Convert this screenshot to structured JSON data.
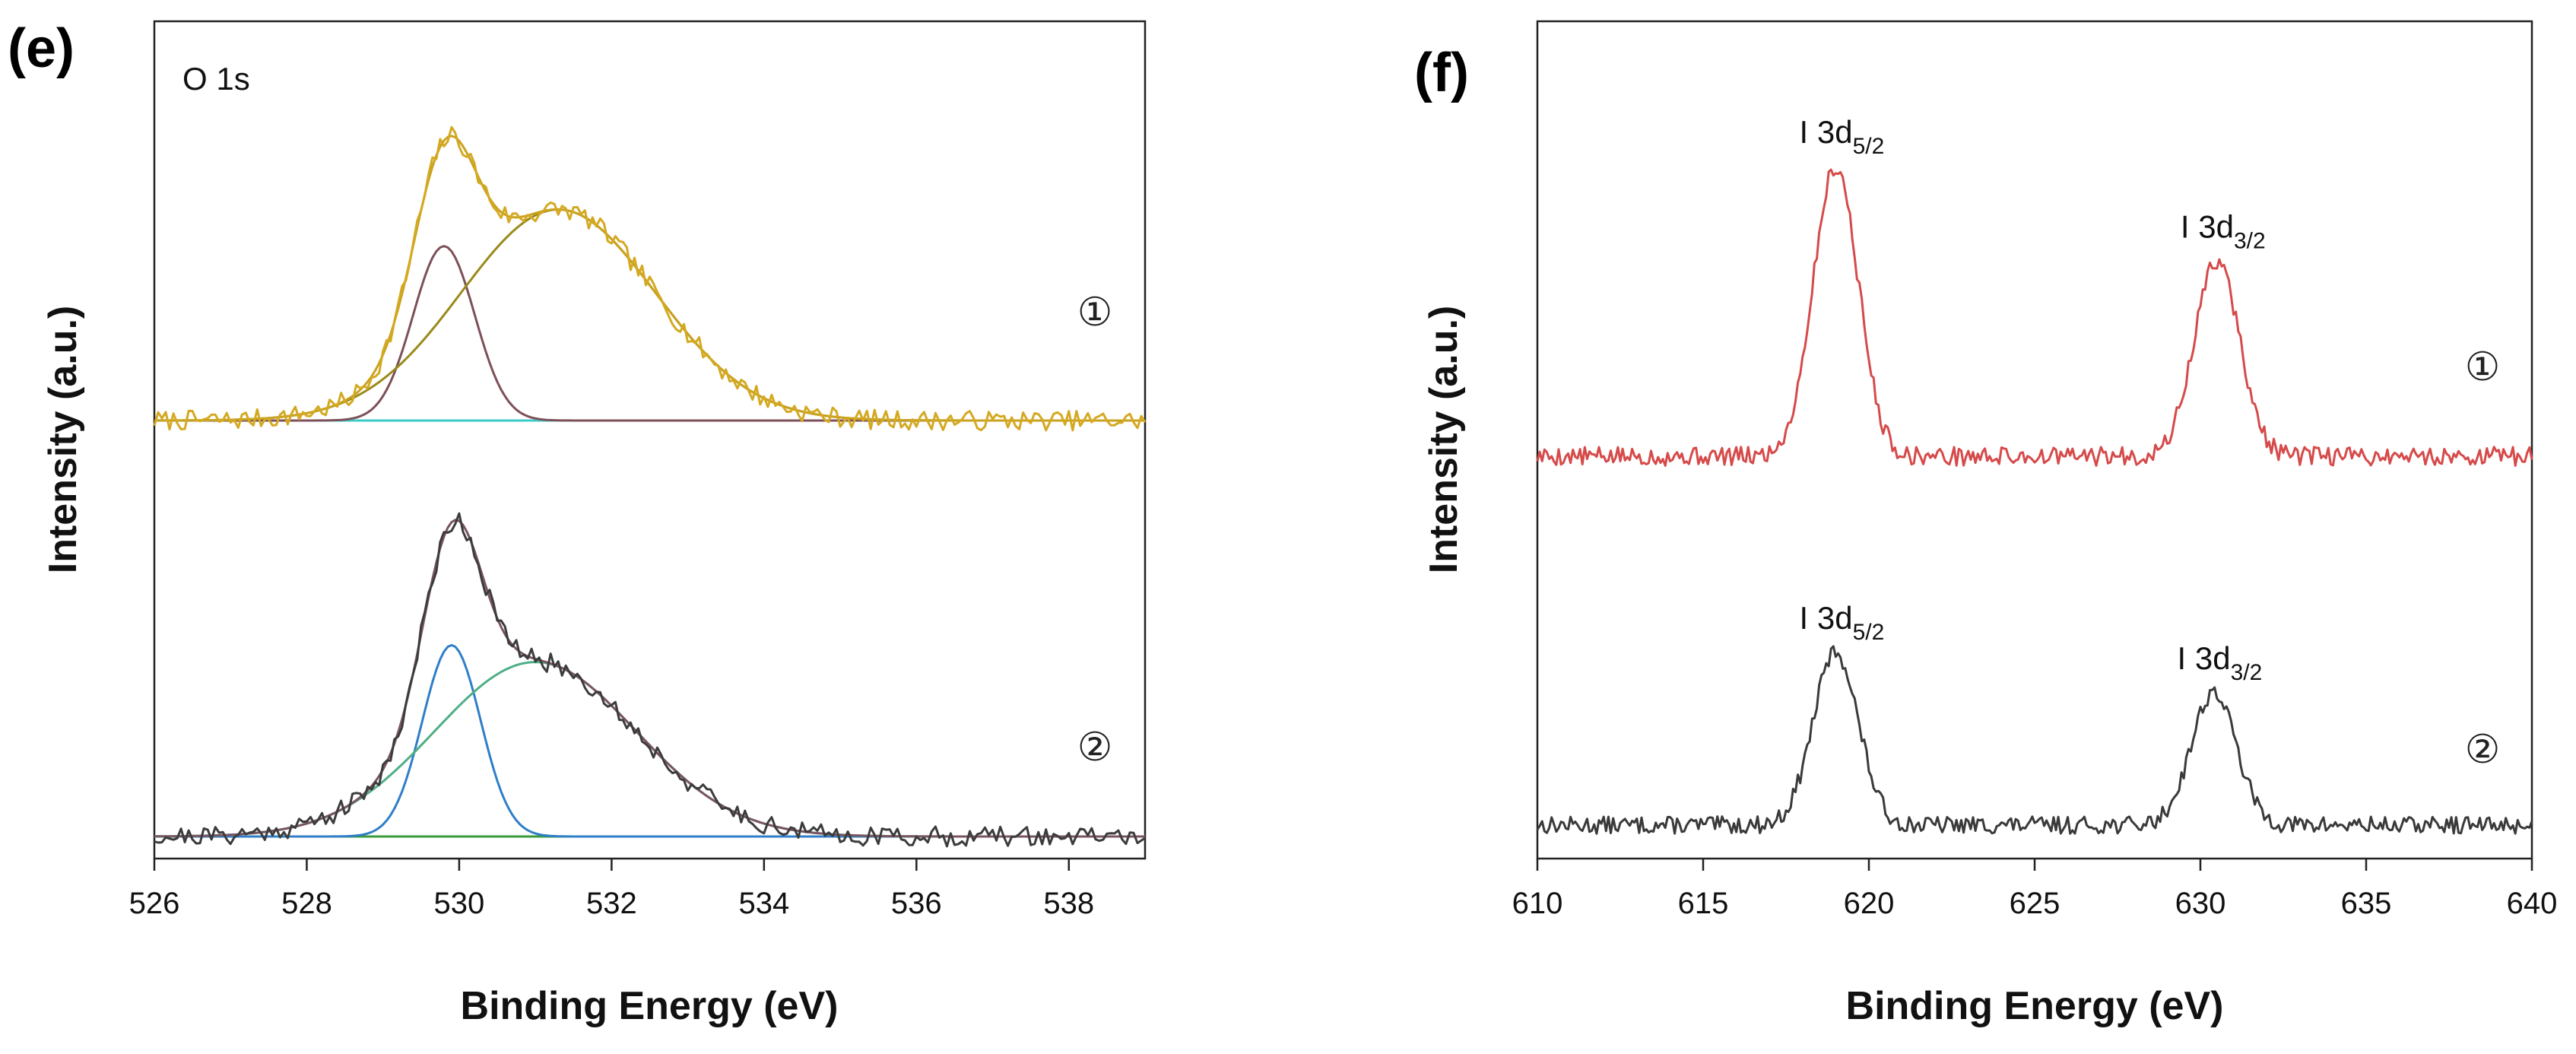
{
  "colors": {
    "e_raw_1": "#D4A922",
    "e_envelope_1": "#C9A21F",
    "e_peak_low_1": "#7D5058",
    "e_peak_high_1": "#9A8A1A",
    "e_baseline_1": "#3EC9C9",
    "e_raw_2": "#3C3C3C",
    "e_envelope_2": "#7A5560",
    "e_peak_low_2": "#2F7EC8",
    "e_peak_high_2": "#4FAE86",
    "e_baseline_2": "#3A9A3A",
    "f_trace_1": "#D64A4A",
    "f_trace_2": "#3A3A3A"
  },
  "chart_data": [
    {
      "panel": "(e)",
      "type": "line",
      "title": "O 1s",
      "xlabel": "Binding Energy (eV)",
      "ylabel": "Intensity (a.u.)",
      "xlim": [
        526,
        539
      ],
      "xticks": [
        526,
        528,
        530,
        532,
        534,
        536,
        538
      ],
      "grid": false,
      "series": [
        {
          "name": "①",
          "baseline": 1.0,
          "noise": 0.035,
          "seed": 7,
          "peaks": [
            {
              "center": 529.8,
              "fwhm": 0.95,
              "height": 0.62
            },
            {
              "center": 531.3,
              "fwhm": 3.0,
              "height": 0.75
            }
          ],
          "annotations": []
        },
        {
          "name": "②",
          "baseline": 0.0,
          "noise": 0.035,
          "seed": 21,
          "peaks": [
            {
              "center": 529.9,
              "fwhm": 0.9,
              "height": 0.68
            },
            {
              "center": 531.0,
              "fwhm": 3.1,
              "height": 0.62
            }
          ],
          "annotations": []
        }
      ]
    },
    {
      "panel": "(f)",
      "type": "line",
      "title": "",
      "xlabel": "Binding Energy (eV)",
      "ylabel": "Intensity (a.u.)",
      "xlim": [
        610,
        640
      ],
      "xticks": [
        610,
        615,
        620,
        625,
        630,
        635,
        640
      ],
      "grid": false,
      "series": [
        {
          "name": "①",
          "baseline": 1.0,
          "noise": 0.03,
          "seed": 5,
          "peaks": [
            {
              "center": 619.0,
              "fwhm": 1.6,
              "height": 0.92
            },
            {
              "center": 630.5,
              "fwhm": 1.6,
              "height": 0.62
            }
          ],
          "annotations": [
            {
              "main": "I 3d",
              "sub": "5/2",
              "x": 619.0
            },
            {
              "main": "I 3d",
              "sub": "3/2",
              "x": 630.5
            }
          ]
        },
        {
          "name": "②",
          "baseline": 0.0,
          "noise": 0.03,
          "seed": 13,
          "peaks": [
            {
              "center": 619.0,
              "fwhm": 1.6,
              "height": 0.6
            },
            {
              "center": 630.4,
              "fwhm": 1.6,
              "height": 0.46
            }
          ],
          "annotations": [
            {
              "main": "I 3d",
              "sub": "5/2",
              "x": 619.0
            },
            {
              "main": "I 3d",
              "sub": "3/2",
              "x": 630.4
            }
          ]
        }
      ]
    }
  ]
}
